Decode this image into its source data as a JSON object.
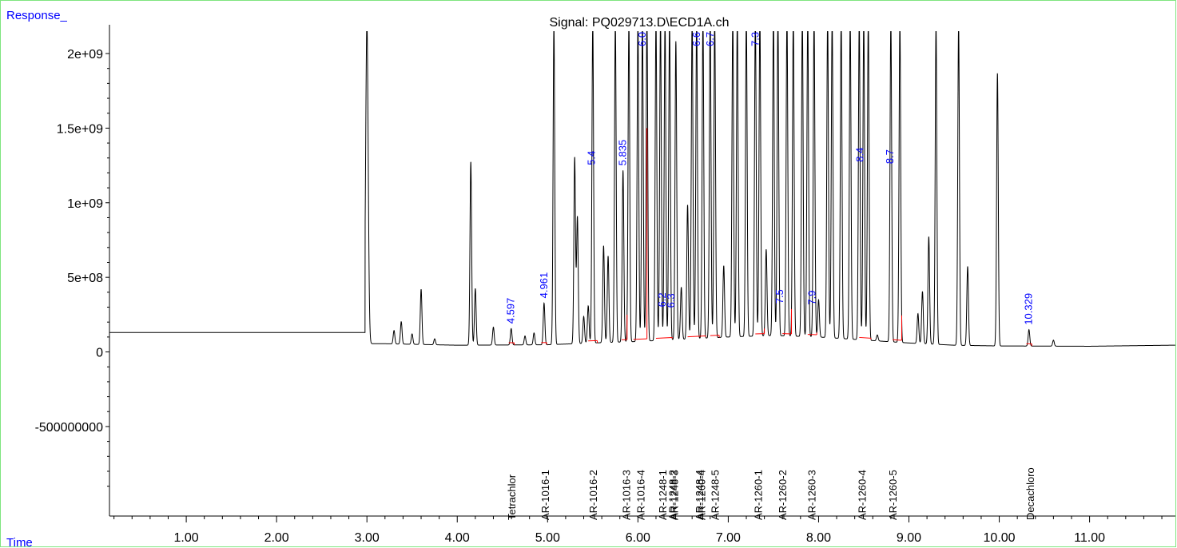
{
  "chart_data": {
    "type": "line",
    "title": "Signal: PQ029713.D\\ECD1A.ch",
    "xlabel": "Time",
    "ylabel": "Response_",
    "xlim": [
      0.15,
      11.95
    ],
    "ylim": [
      -1100000000,
      2150000000
    ],
    "x_ticks": [
      {
        "v": 1,
        "label": "1.00"
      },
      {
        "v": 2,
        "label": "2.00"
      },
      {
        "v": 3,
        "label": "3.00"
      },
      {
        "v": 4,
        "label": "4.00"
      },
      {
        "v": 5,
        "label": "5.00"
      },
      {
        "v": 6,
        "label": "6.00"
      },
      {
        "v": 7,
        "label": "7.00"
      },
      {
        "v": 8,
        "label": "8.00"
      },
      {
        "v": 9,
        "label": "9.00"
      },
      {
        "v": 10,
        "label": "10.00"
      },
      {
        "v": 11,
        "label": "11.00"
      }
    ],
    "y_ticks": [
      {
        "v": 2000000000,
        "label": "2e+09"
      },
      {
        "v": 1500000000,
        "label": "1.5e+09"
      },
      {
        "v": 1000000000,
        "label": "1e+09"
      },
      {
        "v": 500000000,
        "label": "5e+08"
      },
      {
        "v": 0,
        "label": "0"
      },
      {
        "v": -500000000,
        "label": "-500000000"
      }
    ],
    "baseline": {
      "flat_level": 130000000,
      "flat_end": 2.98,
      "points": [
        [
          3.2,
          55000000
        ],
        [
          4.0,
          45000000
        ],
        [
          5.0,
          48000000
        ],
        [
          5.5,
          60000000
        ],
        [
          6.0,
          70000000
        ],
        [
          6.5,
          85000000
        ],
        [
          7.0,
          100000000
        ],
        [
          7.5,
          110000000
        ],
        [
          8.0,
          100000000
        ],
        [
          8.5,
          80000000
        ],
        [
          9.0,
          60000000
        ],
        [
          9.5,
          45000000
        ],
        [
          10.0,
          40000000
        ],
        [
          11.0,
          38000000
        ],
        [
          11.9,
          45000000
        ]
      ]
    },
    "series": [
      {
        "peaks": [
          [
            3.0,
            2150000000
          ],
          [
            3.3,
            90000000
          ],
          [
            3.38,
            150000000
          ],
          [
            3.5,
            70000000
          ],
          [
            3.6,
            370000000
          ],
          [
            3.75,
            40000000
          ],
          [
            4.15,
            1230000000
          ],
          [
            4.2,
            380000000
          ],
          [
            4.4,
            120000000
          ],
          [
            4.597,
            110000000
          ],
          [
            4.75,
            60000000
          ],
          [
            4.85,
            80000000
          ],
          [
            4.961,
            280000000
          ],
          [
            5.07,
            2150000000
          ],
          [
            5.3,
            1250000000
          ],
          [
            5.33,
            850000000
          ],
          [
            5.4,
            180000000
          ],
          [
            5.45,
            250000000
          ],
          [
            5.5,
            2150000000
          ],
          [
            5.62,
            650000000
          ],
          [
            5.67,
            580000000
          ],
          [
            5.75,
            2150000000
          ],
          [
            5.835,
            1150000000
          ],
          [
            5.9,
            2150000000
          ],
          [
            6.0,
            2150000000
          ],
          [
            6.05,
            2150000000
          ],
          [
            6.1,
            2150000000
          ],
          [
            6.2,
            2150000000
          ],
          [
            6.25,
            2150000000
          ],
          [
            6.3,
            2150000000
          ],
          [
            6.35,
            2150000000
          ],
          [
            6.42,
            2000000000
          ],
          [
            6.48,
            350000000
          ],
          [
            6.55,
            900000000
          ],
          [
            6.6,
            2150000000
          ],
          [
            6.65,
            2150000000
          ],
          [
            6.72,
            2150000000
          ],
          [
            6.8,
            2150000000
          ],
          [
            6.85,
            2150000000
          ],
          [
            6.95,
            480000000
          ],
          [
            7.05,
            2150000000
          ],
          [
            7.1,
            2150000000
          ],
          [
            7.2,
            2150000000
          ],
          [
            7.3,
            2150000000
          ],
          [
            7.35,
            2150000000
          ],
          [
            7.42,
            580000000
          ],
          [
            7.5,
            2150000000
          ],
          [
            7.55,
            2150000000
          ],
          [
            7.65,
            2150000000
          ],
          [
            7.72,
            2150000000
          ],
          [
            7.82,
            2150000000
          ],
          [
            7.88,
            2150000000
          ],
          [
            7.95,
            2150000000
          ],
          [
            8.0,
            250000000
          ],
          [
            8.1,
            2150000000
          ],
          [
            8.15,
            2150000000
          ],
          [
            8.25,
            2150000000
          ],
          [
            8.35,
            2150000000
          ],
          [
            8.45,
            2150000000
          ],
          [
            8.5,
            2150000000
          ],
          [
            8.55,
            2150000000
          ],
          [
            8.65,
            40000000
          ],
          [
            8.8,
            2150000000
          ],
          [
            8.9,
            2150000000
          ],
          [
            9.1,
            200000000
          ],
          [
            9.15,
            350000000
          ],
          [
            9.22,
            720000000
          ],
          [
            9.3,
            2150000000
          ],
          [
            9.55,
            2150000000
          ],
          [
            9.65,
            530000000
          ],
          [
            9.98,
            1830000000
          ],
          [
            10.329,
            110000000
          ],
          [
            10.6,
            40000000
          ]
        ]
      }
    ],
    "integration_ranges": [
      [
        4.57,
        4.63
      ],
      [
        4.93,
        4.99
      ],
      [
        5.45,
        5.55
      ],
      [
        5.82,
        5.88
      ],
      [
        5.95,
        6.1
      ],
      [
        6.2,
        6.38
      ],
      [
        6.55,
        6.75
      ],
      [
        6.8,
        6.9
      ],
      [
        7.3,
        7.4
      ],
      [
        7.6,
        7.7
      ],
      [
        7.88,
        7.98
      ],
      [
        8.45,
        8.58
      ],
      [
        8.82,
        8.92
      ],
      [
        10.3,
        10.36
      ]
    ],
    "peak_labels": [
      {
        "x": 4.597,
        "label": "4.597"
      },
      {
        "x": 4.961,
        "label": "4.961"
      },
      {
        "x": 5.835,
        "label": "5.835"
      },
      {
        "x": 10.329,
        "label": "10.329"
      },
      {
        "x": 5.49,
        "label": "5.4"
      },
      {
        "x": 6.05,
        "label": "6.0"
      },
      {
        "x": 6.27,
        "label": "6.2"
      },
      {
        "x": 6.37,
        "label": "6.3"
      },
      {
        "x": 6.65,
        "label": "6.6"
      },
      {
        "x": 6.8,
        "label": "6.7"
      },
      {
        "x": 7.3,
        "label": "7.3"
      },
      {
        "x": 7.57,
        "label": "7.5"
      },
      {
        "x": 7.93,
        "label": "7.9"
      },
      {
        "x": 8.46,
        "label": "8.4"
      },
      {
        "x": 8.79,
        "label": "8.7"
      }
    ],
    "compound_labels": [
      {
        "x": 4.6,
        "label": "Tetrachlor"
      },
      {
        "x": 4.97,
        "label": "AR-1016-1"
      },
      {
        "x": 5.5,
        "label": "AR-1016-2"
      },
      {
        "x": 5.87,
        "label": "AR-1016-3"
      },
      {
        "x": 6.03,
        "label": "AR-1016-4"
      },
      {
        "x": 6.27,
        "label": "AR-1248-1"
      },
      {
        "x": 6.38,
        "label": "AR-1248-2"
      },
      {
        "x": 6.4,
        "label": "AR-1248-3"
      },
      {
        "x": 6.68,
        "label": "AR-1248-4"
      },
      {
        "x": 6.7,
        "label": "AR-1260-4"
      },
      {
        "x": 6.85,
        "label": "AR-1248-5"
      },
      {
        "x": 7.33,
        "label": "AR-1260-1"
      },
      {
        "x": 7.6,
        "label": "AR-1260-2"
      },
      {
        "x": 7.92,
        "label": "AR-1260-3"
      },
      {
        "x": 8.48,
        "label": "AR-1260-4"
      },
      {
        "x": 8.82,
        "label": "AR-1260-5"
      },
      {
        "x": 10.34,
        "label": "Decachloro"
      }
    ],
    "grid": false,
    "legend": "none",
    "colors": {
      "trace": "#000000",
      "integration": "#ff0000",
      "peak_label": "#0000ff",
      "axis_title": "#0000ff",
      "frame": "#7fe57f"
    }
  }
}
